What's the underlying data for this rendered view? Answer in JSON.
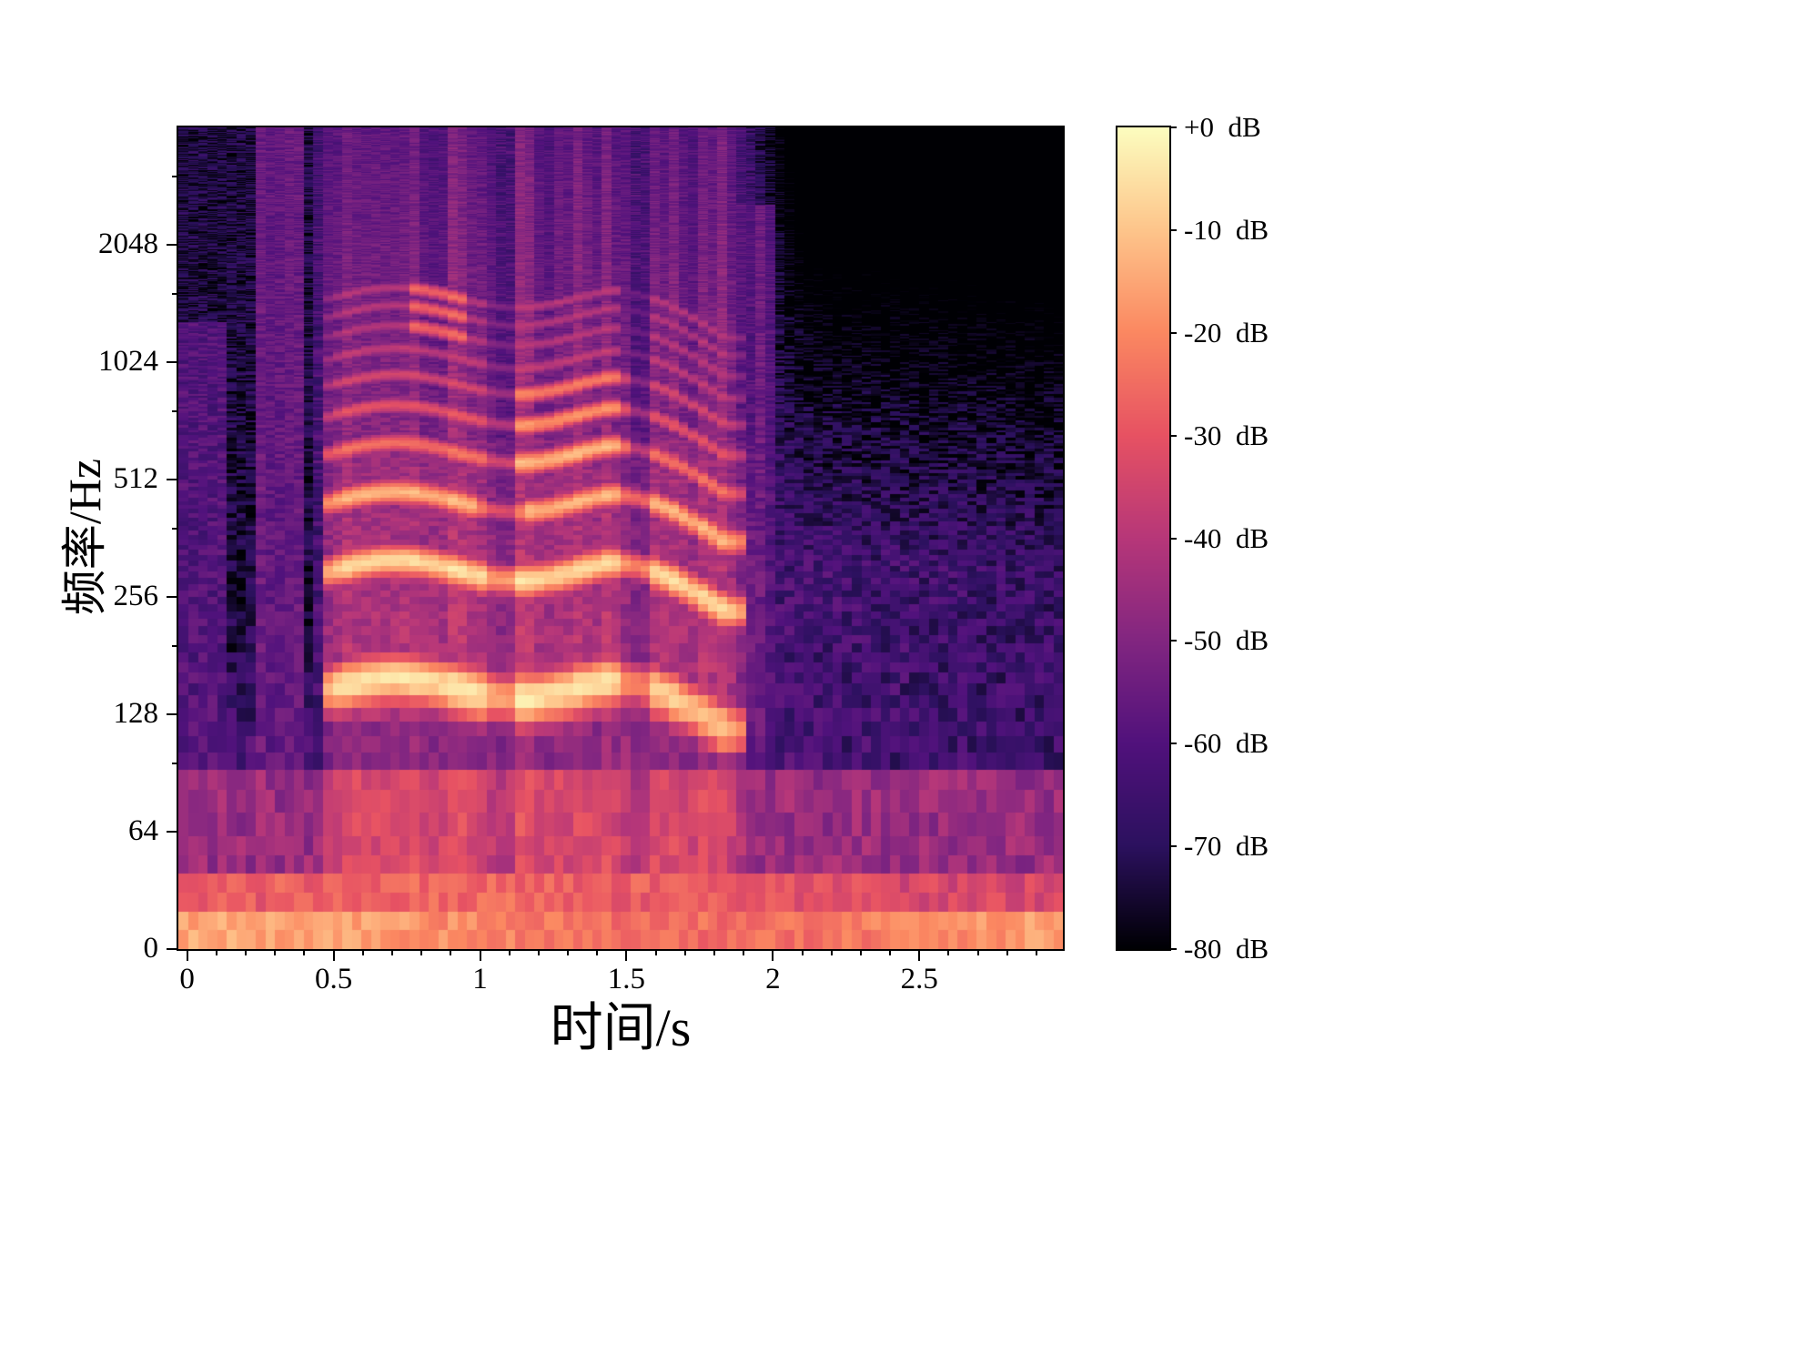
{
  "chart_data": {
    "type": "heatmap",
    "subtype": "spectrogram",
    "title": "",
    "xlabel": "时间/s",
    "ylabel": "频率/Hz",
    "x_ticks": [
      0,
      0.5,
      1,
      1.5,
      2,
      2.5
    ],
    "x_tick_labels": [
      "0",
      "0.5",
      "1",
      "1.5",
      "2",
      "2.5"
    ],
    "x_minor_step": 0.1,
    "x_range_s": [
      -0.03,
      2.99
    ],
    "y_ticks": [
      2048,
      1024,
      512,
      256,
      128,
      64,
      0
    ],
    "y_tick_labels": [
      "2048",
      "1024",
      "512",
      "256",
      "128",
      "64",
      "0"
    ],
    "y_minor_ticks": [
      96,
      192,
      384,
      768,
      1536,
      3072
    ],
    "y_range_hz": [
      0,
      4096
    ],
    "y_scale": "log2 above 64 Hz, linear from 64 Hz down to 0",
    "grid": false,
    "legend_position": "none",
    "colormap": "magma",
    "colormap_stops": [
      {
        "pos": 0.0,
        "color": "#000004"
      },
      {
        "pos": 0.125,
        "color": "#2c115f"
      },
      {
        "pos": 0.25,
        "color": "#51127c"
      },
      {
        "pos": 0.375,
        "color": "#822681"
      },
      {
        "pos": 0.5,
        "color": "#b73779"
      },
      {
        "pos": 0.625,
        "color": "#e75263"
      },
      {
        "pos": 0.75,
        "color": "#fb8861"
      },
      {
        "pos": 0.875,
        "color": "#fec58b"
      },
      {
        "pos": 1.0,
        "color": "#fcfdbf"
      }
    ],
    "colorbar_range_db": [
      -80,
      0
    ],
    "colorbar_labels": [
      "+0  dB",
      "-10  dB",
      "-20  dB",
      "-30  dB",
      "-40  dB",
      "-50  dB",
      "-60  dB",
      "-70  dB",
      "-80  dB"
    ],
    "description": "Log-frequency power spectrogram (magma colormap) of a ~3 s audio/speech clip. Voiced harmonic energy from ~0.45 s to ~1.85 s with fundamental ~140-160 Hz and bright harmonics near 300 Hz and 450 Hz; a cluster of raised harmonics 550-900 Hz around 1.15-1.5 s; a high-frequency bright patch near 1200-1600 Hz around 0.85 s. Persistent bright low-frequency band below ~40 Hz across the full duration; dark (-70 to -80 dB) background at top-left and upper-right; purple noise floor around -60 dB elsewhere.",
    "synthesis": {
      "seed": 1337,
      "t_start": -0.03,
      "t_end": 2.99,
      "freq_max": 4096,
      "n_time_bins": 92,
      "n_freq_bins": 400,
      "noise_floor_db": -63,
      "voiced": {
        "start": 0.44,
        "attack": 0.1,
        "end": 1.8,
        "release": 0.15
      },
      "f0_base_hz": 150,
      "f0_vibrato_hz": 9,
      "f0_fall_after_s": 1.45,
      "f0_fall_rate": 70,
      "harmonic_amps_db": [
        -4,
        -6,
        -12,
        -24,
        -30,
        -34,
        -38,
        -40,
        -40,
        -40
      ],
      "harmonic_boosts": [
        {
          "k_min": 4,
          "k_max": 6,
          "t_min": 1.12,
          "t_max": 1.5,
          "db": 12
        },
        {
          "k_min": 8,
          "k_max": 12,
          "t_min": 0.76,
          "t_max": 0.97,
          "db": 14
        },
        {
          "k_min": 3,
          "k_max": 3,
          "t_min": 1.0,
          "t_max": 1.15,
          "db": -10
        }
      ],
      "dips": [
        [
          1.02,
          1.12,
          -9
        ],
        [
          1.49,
          1.58,
          -13
        ]
      ],
      "low_band": {
        "f1_hz": 22,
        "f1_db": -20,
        "f2_hz": 45,
        "f2_db": -30,
        "f3_hz": 90,
        "f3_db": -46
      },
      "pre_burst": {
        "t_min": 0.24,
        "t_max": 0.4,
        "db": -56
      },
      "post_burst": {
        "t_min": 1.86,
        "t_max": 2.02,
        "f_max": 2600,
        "db": -57
      },
      "db_min": -80,
      "db_max": 0
    }
  }
}
